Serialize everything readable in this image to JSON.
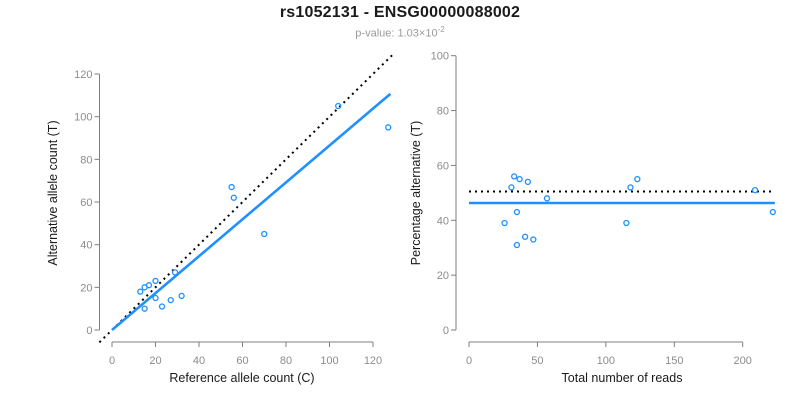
{
  "header": {
    "title": "rs1052131 - ENSG00000088002",
    "subtitle_prefix": "p-value: 1.03×10",
    "subtitle_exponent": "-2"
  },
  "colors": {
    "accent_blue": "#1E90FF",
    "line_black": "#000000",
    "axis_gray": "#7f7f7f",
    "tick_label_gray": "#8c8c8c",
    "subtitle_gray": "#9a9a9a"
  },
  "chart_data": [
    {
      "type": "scatter",
      "title": "",
      "xlabel": "Reference allele count (C)",
      "ylabel": "Alternative allele count (T)",
      "xlim": [
        0,
        120
      ],
      "ylim": [
        0,
        120
      ],
      "xticks": [
        0,
        20,
        40,
        60,
        80,
        100,
        120
      ],
      "yticks": [
        0,
        20,
        40,
        60,
        80,
        100,
        120
      ],
      "grid": "off",
      "point_color": "#1E90FF",
      "points": [
        [
          13,
          18
        ],
        [
          15,
          20
        ],
        [
          15,
          10
        ],
        [
          17,
          21
        ],
        [
          20,
          23
        ],
        [
          20,
          15
        ],
        [
          23,
          11
        ],
        [
          27,
          14
        ],
        [
          29,
          27
        ],
        [
          32,
          16
        ],
        [
          55,
          67
        ],
        [
          56,
          62
        ],
        [
          70,
          45
        ],
        [
          104,
          105
        ],
        [
          127,
          95
        ]
      ],
      "lines": [
        {
          "name": "identity-line",
          "style": "dotted",
          "color": "#000000",
          "x1": -5.8,
          "y1": -5.8,
          "x2": 129,
          "y2": 129
        },
        {
          "name": "regression-line",
          "style": "solid",
          "color": "#1E90FF",
          "x1": 0,
          "y1": 0,
          "x2": 128,
          "y2": 110.7
        }
      ]
    },
    {
      "type": "scatter",
      "title": "",
      "xlabel": "Total number of reads",
      "ylabel": "Percentage alternative (T)",
      "xlim": [
        0,
        200
      ],
      "ylim": [
        0,
        100
      ],
      "xticks": [
        0,
        50,
        100,
        150,
        200
      ],
      "yticks": [
        0,
        20,
        40,
        60,
        80,
        100
      ],
      "grid": "off",
      "point_color": "#1E90FF",
      "points": [
        [
          26,
          39
        ],
        [
          31,
          52
        ],
        [
          33,
          56
        ],
        [
          35,
          43
        ],
        [
          35,
          31
        ],
        [
          37,
          55
        ],
        [
          41,
          34
        ],
        [
          43,
          54
        ],
        [
          47,
          33
        ],
        [
          57,
          48
        ],
        [
          115,
          39
        ],
        [
          118,
          52
        ],
        [
          123,
          55
        ],
        [
          209,
          51
        ],
        [
          222,
          43
        ]
      ],
      "lines": [
        {
          "name": "expected-line",
          "style": "dotted",
          "color": "#000000",
          "x1": 0,
          "y1": 50.5,
          "x2": 223,
          "y2": 50.5
        },
        {
          "name": "fit-line",
          "style": "solid",
          "color": "#1E90FF",
          "x1": 0,
          "y1": 46.3,
          "x2": 223.5,
          "y2": 46.3
        }
      ]
    }
  ]
}
